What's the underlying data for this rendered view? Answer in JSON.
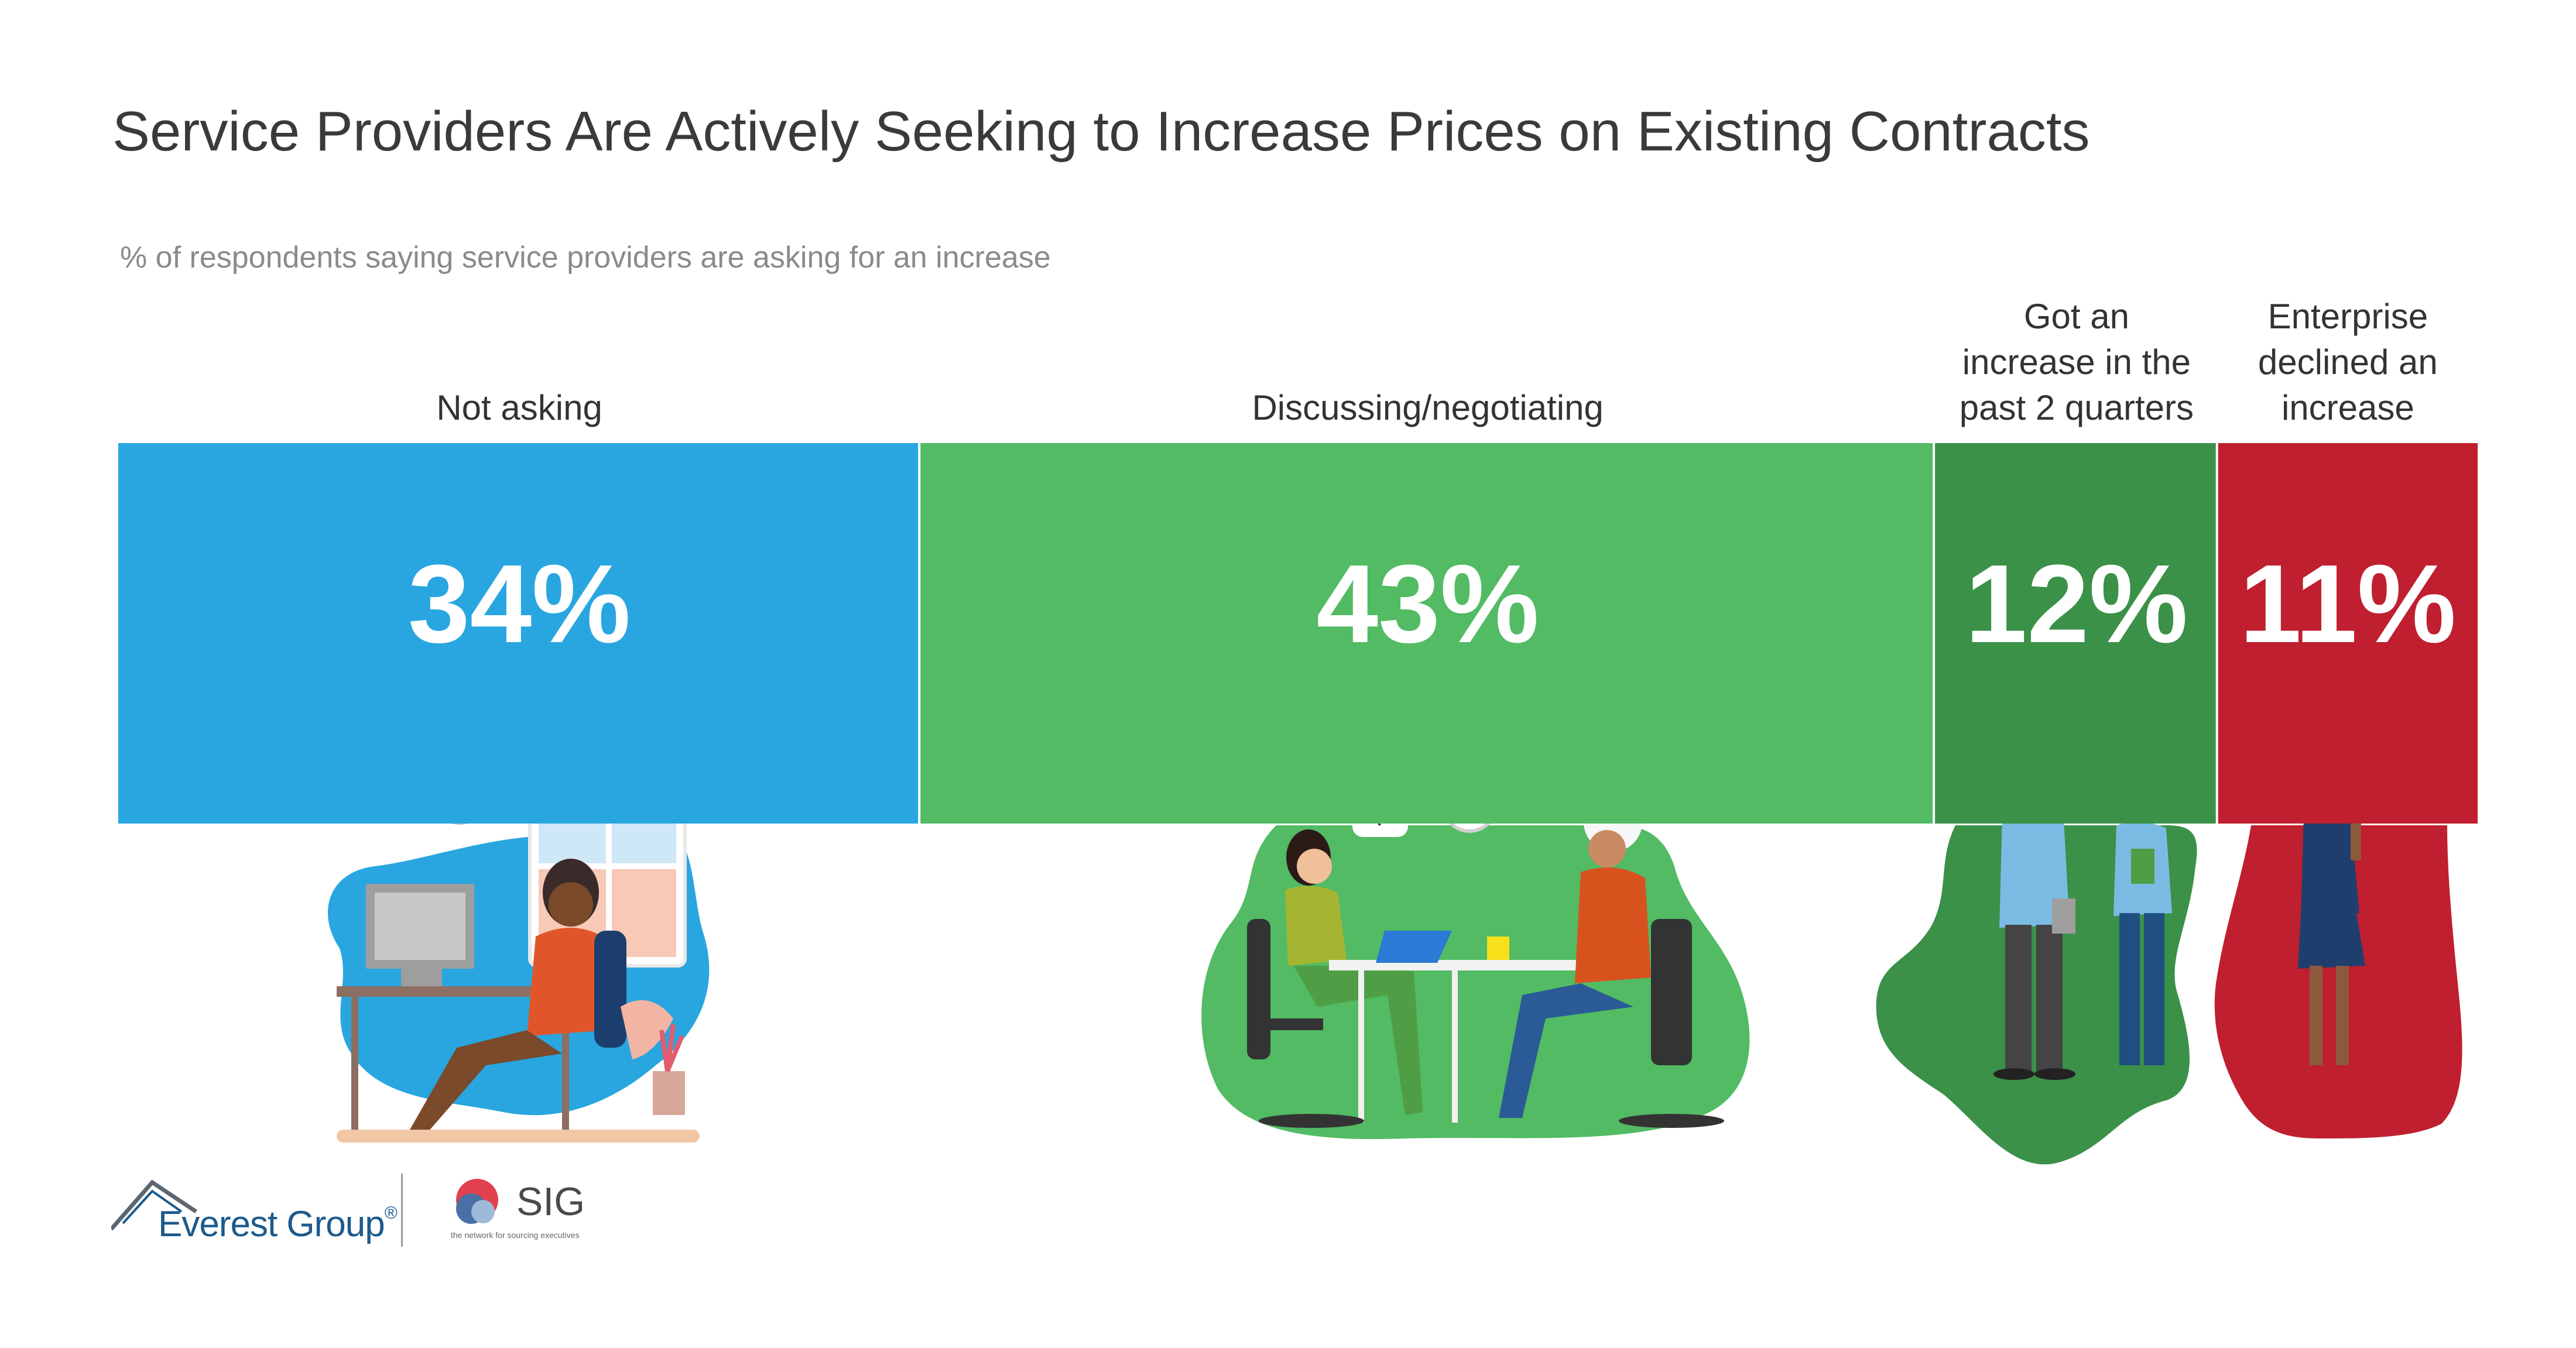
{
  "title": "Service Providers Are Actively Seeking to Increase Prices on Existing Contracts",
  "subtitle": "% of respondents saying service providers are asking for an increase",
  "chart_data": {
    "type": "bar",
    "orientation": "horizontal-stacked",
    "categories": [
      "Not asking",
      "Discussing/negotiating",
      "Got an increase in the past 2 quarters",
      "Enterprise declined an increase"
    ],
    "label_lines": [
      [
        "Not asking"
      ],
      [
        "Discussing/negotiating"
      ],
      [
        "Got an",
        "increase in the",
        "past 2 quarters"
      ],
      [
        "Enterprise",
        "declined an",
        "increase"
      ]
    ],
    "values": [
      34,
      43,
      12,
      11
    ],
    "value_labels": [
      "34%",
      "43%",
      "12%",
      "11%"
    ],
    "colors": [
      "#29a6e0",
      "#52bb64",
      "#3a9147",
      "#bf1f2e"
    ],
    "unit": "%",
    "legend": "none",
    "grid": false
  },
  "logos": {
    "everest": {
      "text": "Everest Group",
      "reg": "®"
    },
    "sig": {
      "text": "SIG",
      "tagline": "the network for sourcing executives"
    }
  }
}
